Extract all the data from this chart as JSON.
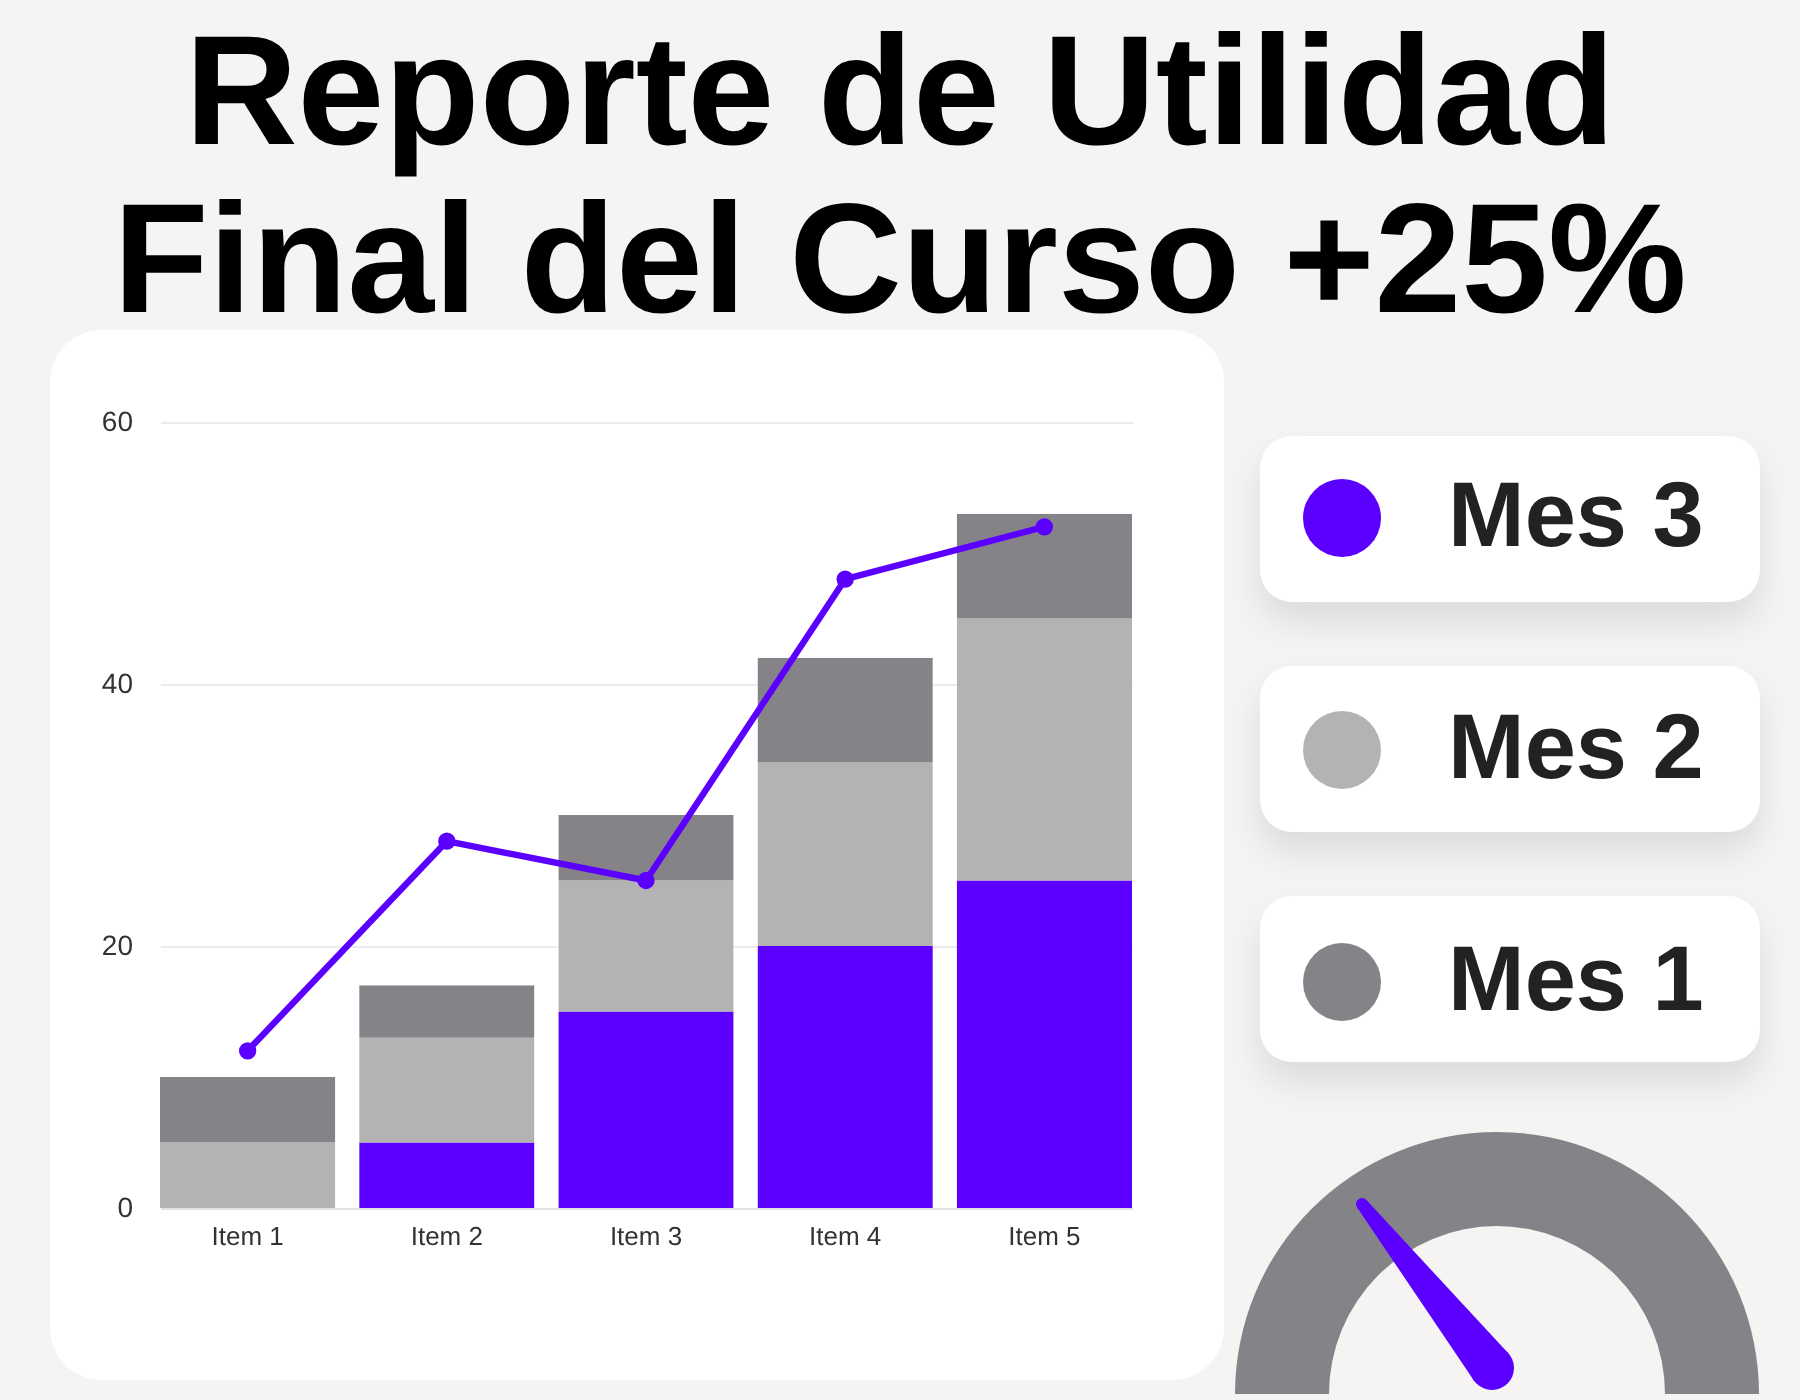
{
  "chart_data": {
    "type": "bar",
    "title": "Reporte de Utilidad Final del Curso +25%",
    "categories": [
      "Item 1",
      "Item 2",
      "Item 3",
      "Item 4",
      "Item 5"
    ],
    "stacked": true,
    "series": [
      {
        "name": "Mes 3",
        "color": "#5b00ff",
        "values": [
          0,
          5,
          15,
          20,
          25
        ]
      },
      {
        "name": "Mes 2",
        "color": "#b3b3b3",
        "values": [
          5,
          8,
          10,
          14,
          20
        ]
      },
      {
        "name": "Mes 1",
        "color": "#858388",
        "values": [
          5,
          4,
          5,
          8,
          8
        ]
      },
      {
        "type": "line",
        "color": "#5b00ff",
        "values": [
          12,
          28,
          25,
          48,
          52
        ]
      }
    ],
    "ylim": [
      0,
      60
    ],
    "yticks": [
      0,
      20,
      40,
      60
    ],
    "grid": "y",
    "legend": "right",
    "marker": "circle"
  }
}
